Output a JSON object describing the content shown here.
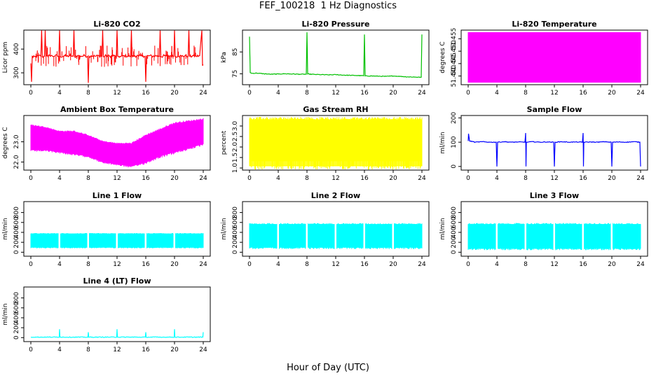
{
  "title": "FEF_100218  1 Hz Diagnostics",
  "xlabel": "Hour of Day (UTC)",
  "chart_data": [
    {
      "type": "line",
      "title": "Li-820 CO2",
      "ylabel": "Licor ppm",
      "color": "#ff0000",
      "xlim": [
        0,
        24
      ],
      "ylim": [
        250,
        480
      ],
      "xticks": [
        0,
        4,
        8,
        12,
        16,
        20,
        24
      ],
      "yticks": [
        300,
        400
      ],
      "ytick_labels": [
        "300",
        "400"
      ],
      "series": [
        {
          "x": [
            0,
            0.1,
            0.2,
            0.3,
            0.6,
            1.0,
            1.4,
            1.5,
            1.6,
            1.9,
            2.0,
            2.1,
            2.4,
            2.6,
            3.0,
            3.4,
            3.9,
            4.0,
            4.1,
            4.4,
            4.6,
            5.0,
            5.6,
            5.9,
            6.0,
            6.1,
            6.5,
            7.0,
            7.5,
            7.9,
            8.0,
            8.1,
            8.4,
            9.0,
            9.5,
            9.9,
            10.0,
            10.1,
            10.5,
            11.0,
            11.6,
            11.9,
            12.0,
            12.1,
            12.5,
            13.0,
            13.5,
            13.9,
            14.0,
            14.1,
            14.5,
            15.0,
            15.6,
            15.9,
            16.0,
            16.1,
            16.5,
            17.0,
            17.5,
            17.9,
            18.0,
            18.1,
            18.6,
            19.0,
            19.5,
            19.9,
            20.0,
            20.1,
            20.5,
            21.0,
            21.5,
            21.9,
            22.0,
            22.1,
            22.6,
            23.0,
            23.5,
            23.8,
            23.9,
            24.0
          ],
          "y": [
            340,
            262,
            370,
            365,
            368,
            372,
            370,
            478,
            368,
            370,
            478,
            370,
            368,
            375,
            370,
            372,
            370,
            478,
            370,
            368,
            372,
            370,
            372,
            370,
            478,
            368,
            372,
            370,
            372,
            370,
            258,
            370,
            372,
            370,
            372,
            370,
            478,
            368,
            372,
            370,
            372,
            370,
            478,
            370,
            368,
            372,
            370,
            370,
            478,
            368,
            372,
            370,
            372,
            370,
            262,
            370,
            372,
            370,
            372,
            370,
            478,
            368,
            372,
            370,
            372,
            370,
            478,
            368,
            372,
            370,
            372,
            370,
            478,
            368,
            372,
            370,
            372,
            478,
            330,
            335
          ]
        }
      ]
    },
    {
      "type": "line",
      "title": "Li-820 Pressure",
      "ylabel": "kPa",
      "color": "#00c000",
      "xlim": [
        0,
        24
      ],
      "ylim": [
        70,
        95
      ],
      "xticks": [
        0,
        4,
        8,
        12,
        16,
        20,
        24
      ],
      "yticks": [
        75,
        85
      ],
      "ytick_labels": [
        "75",
        "85"
      ],
      "series": [
        {
          "x": [
            0,
            0.05,
            0.1,
            0.3,
            1,
            2,
            3,
            4,
            5,
            6,
            7,
            7.9,
            8.0,
            8.1,
            9,
            10,
            11,
            12,
            13,
            14,
            15,
            15.9,
            16.0,
            16.1,
            17,
            18,
            19,
            20,
            21,
            22,
            23,
            23.9,
            24.0
          ],
          "y": [
            92,
            84,
            75.5,
            75.2,
            75.3,
            75,
            74.8,
            74.9,
            75,
            74.9,
            74.8,
            74.8,
            94,
            74.9,
            74.7,
            74.6,
            74.5,
            74.6,
            74.4,
            74.3,
            74.2,
            74.1,
            93,
            74,
            74,
            73.9,
            73.8,
            74,
            73.8,
            73.6,
            73.5,
            73.4,
            93
          ]
        }
      ]
    },
    {
      "type": "area",
      "title": "Li-820 Temperature",
      "ylabel": "degrees C",
      "color": "#ff00ff",
      "xlim": [
        0,
        24
      ],
      "ylim": [
        51.4365,
        51.4585
      ],
      "xticks": [
        0,
        4,
        8,
        12,
        16,
        20,
        24
      ],
      "yticks": [
        51.44,
        51.445,
        51.45,
        51.455
      ],
      "ytick_labels": [
        "51.440",
        "51.445",
        "51.450",
        "51.455"
      ],
      "series": [
        {
          "x": [
            0,
            24
          ],
          "ymin": [
            51.4375,
            51.4375
          ],
          "ymax": [
            51.4575,
            51.4575
          ]
        }
      ]
    },
    {
      "type": "area",
      "title": "Ambient Box Temperature",
      "ylabel": "degrees C",
      "color": "#ff00ff",
      "xlim": [
        0,
        24
      ],
      "ylim": [
        21.6,
        24.3
      ],
      "xticks": [
        0,
        4,
        8,
        12,
        16,
        20,
        24
      ],
      "yticks": [
        22.0,
        23.0
      ],
      "ytick_labels": [
        "22.0",
        "23.0"
      ],
      "series": [
        {
          "x": [
            0,
            2,
            4,
            6,
            8,
            10,
            12,
            14,
            16,
            18,
            20,
            22,
            24
          ],
          "ymin": [
            22.6,
            22.6,
            22.5,
            22.4,
            22.3,
            22.0,
            21.9,
            21.8,
            22.0,
            22.3,
            22.5,
            22.7,
            22.9
          ],
          "ymax": [
            23.8,
            23.7,
            23.5,
            23.5,
            23.3,
            23.0,
            22.9,
            22.9,
            23.3,
            23.6,
            23.9,
            24.0,
            24.1
          ]
        }
      ]
    },
    {
      "type": "area",
      "title": "Gas Stream RH",
      "ylabel": "percent",
      "color": "#ffff00",
      "xlim": [
        0,
        24
      ],
      "ylim": [
        0.9,
        3.5
      ],
      "xticks": [
        0,
        4,
        8,
        12,
        16,
        20,
        24
      ],
      "yticks": [
        1.0,
        1.5,
        2.0,
        2.5,
        3.0
      ],
      "ytick_labels": [
        "1.0",
        "1.5",
        "2.0",
        "2.5",
        "3.0"
      ],
      "series": [
        {
          "x": [
            0,
            24
          ],
          "ymin": [
            1.1,
            1.1
          ],
          "ymax": [
            3.3,
            3.3
          ]
        }
      ]
    },
    {
      "type": "line",
      "title": "Sample Flow",
      "ylabel": "ml/min",
      "color": "#0000ff",
      "xlim": [
        0,
        24
      ],
      "ylim": [
        -15,
        210
      ],
      "xticks": [
        0,
        4,
        8,
        12,
        16,
        20,
        24
      ],
      "yticks": [
        0,
        100,
        200
      ],
      "ytick_labels": [
        "0",
        "100",
        "200"
      ],
      "series": [
        {
          "x": [
            0,
            0.05,
            0.2,
            1,
            2,
            3,
            3.9,
            4.0,
            4.1,
            5,
            6,
            7,
            7.9,
            8.0,
            8.05,
            8.1,
            9,
            10,
            11,
            11.9,
            12.0,
            12.1,
            13,
            14,
            15,
            15.9,
            16.0,
            16.05,
            16.1,
            17,
            18,
            19,
            19.9,
            20.0,
            20.1,
            21,
            22,
            23,
            23.9,
            24.0
          ],
          "y": [
            105,
            135,
            105,
            100,
            102,
            100,
            100,
            0,
            100,
            102,
            100,
            101,
            100,
            138,
            0,
            100,
            102,
            100,
            101,
            100,
            0,
            100,
            102,
            100,
            101,
            100,
            138,
            0,
            100,
            101,
            100,
            102,
            100,
            0,
            100,
            101,
            100,
            102,
            100,
            0
          ]
        }
      ]
    },
    {
      "type": "area",
      "title": "Line 1 Flow",
      "ylabel": "ml/min",
      "color": "#00ffff",
      "xlim": [
        0,
        24
      ],
      "ylim": [
        -80,
        1020
      ],
      "xticks": [
        0,
        4,
        8,
        12,
        16,
        20,
        24
      ],
      "yticks": [
        0,
        200,
        400,
        600,
        800
      ],
      "ytick_labels": [
        "0",
        "200",
        "400",
        "600",
        "800"
      ],
      "series": [
        {
          "x": [
            0,
            24
          ],
          "ymin": [
            100,
            100
          ],
          "ymax": [
            370,
            370
          ]
        }
      ]
    },
    {
      "type": "area",
      "title": "Line 2 Flow",
      "ylabel": "ml/min",
      "color": "#00ffff",
      "xlim": [
        0,
        24
      ],
      "ylim": [
        -80,
        1020
      ],
      "xticks": [
        0,
        4,
        8,
        12,
        16,
        20,
        24
      ],
      "yticks": [
        0,
        200,
        400,
        600,
        800
      ],
      "ytick_labels": [
        "0",
        "200",
        "400",
        "600",
        "800"
      ],
      "series": [
        {
          "x": [
            0,
            24
          ],
          "ymin": [
            100,
            100
          ],
          "ymax": [
            560,
            560
          ]
        }
      ]
    },
    {
      "type": "area",
      "title": "Line 3 Flow",
      "ylabel": "ml/min",
      "color": "#00ffff",
      "xlim": [
        0,
        24
      ],
      "ylim": [
        -80,
        1020
      ],
      "xticks": [
        0,
        4,
        8,
        12,
        16,
        20,
        24
      ],
      "yticks": [
        0,
        200,
        400,
        600,
        800
      ],
      "ytick_labels": [
        "0",
        "200",
        "400",
        "600",
        "800"
      ],
      "series": [
        {
          "x": [
            0,
            24
          ],
          "ymin": [
            80,
            80
          ],
          "ymax": [
            560,
            560
          ]
        }
      ]
    },
    {
      "type": "line",
      "title": "Line 4 (LT) Flow",
      "ylabel": "ml/min",
      "color": "#00ffff",
      "xlim": [
        0,
        24
      ],
      "ylim": [
        -80,
        1020
      ],
      "xticks": [
        0,
        4,
        8,
        12,
        16,
        20,
        24
      ],
      "yticks": [
        0,
        200,
        400,
        600,
        800
      ],
      "ytick_labels": [
        "0",
        "200",
        "400",
        "600",
        "800"
      ],
      "series": [
        {
          "x": [
            0,
            3.95,
            4.0,
            4.05,
            7.95,
            8.0,
            8.05,
            11.95,
            12.0,
            12.05,
            15.95,
            16.0,
            16.05,
            19.95,
            20.0,
            20.05,
            23.95,
            24.0
          ],
          "y": [
            10,
            10,
            170,
            10,
            10,
            110,
            10,
            10,
            170,
            10,
            10,
            110,
            10,
            10,
            170,
            10,
            10,
            110
          ]
        }
      ]
    }
  ]
}
